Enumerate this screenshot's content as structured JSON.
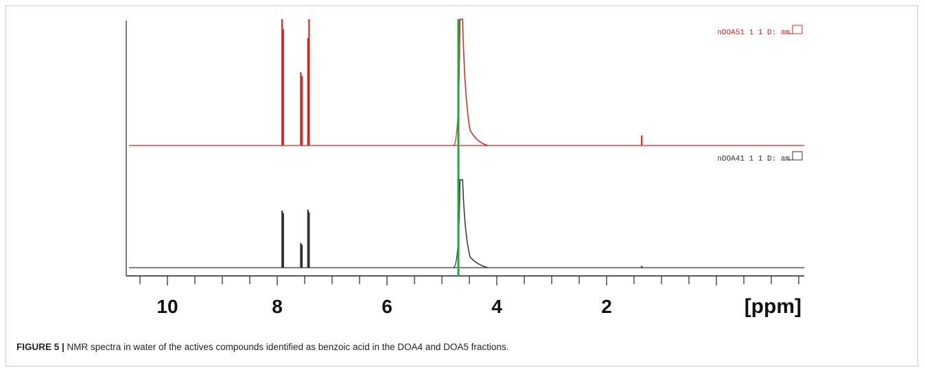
{
  "chart_data": {
    "type": "line",
    "x_axis": {
      "reversed": true,
      "range": [
        10.75,
        -1.6
      ],
      "major_ticks": [
        10,
        8,
        6,
        4,
        2
      ],
      "minor_tick_step": 0.5,
      "unit_label": "[ppm]"
    },
    "water_line_ppm": 4.7,
    "series": [
      {
        "name": "nDOA51 1 1 D: am",
        "color": "#e02020",
        "peaks": [
          {
            "ppm": 7.91,
            "height": 1.0
          },
          {
            "ppm": 7.89,
            "height": 0.92
          },
          {
            "ppm": 7.57,
            "height": 0.58
          },
          {
            "ppm": 7.55,
            "height": 0.55
          },
          {
            "ppm": 7.44,
            "height": 0.85
          },
          {
            "ppm": 7.42,
            "height": 1.0
          },
          {
            "ppm": 4.66,
            "height": 1.0
          },
          {
            "ppm": 1.36,
            "height": 0.08
          }
        ]
      },
      {
        "name": "nDOA41 1 1 D: am",
        "color": "#303030",
        "peaks": [
          {
            "ppm": 7.91,
            "height": 0.65
          },
          {
            "ppm": 7.89,
            "height": 0.62
          },
          {
            "ppm": 7.57,
            "height": 0.28
          },
          {
            "ppm": 7.55,
            "height": 0.26
          },
          {
            "ppm": 7.44,
            "height": 0.66
          },
          {
            "ppm": 7.42,
            "height": 0.63
          },
          {
            "ppm": 4.66,
            "height": 1.0
          },
          {
            "ppm": 1.36,
            "height": 0.02
          }
        ]
      }
    ]
  },
  "caption": {
    "label": "FIGURE 5 |",
    "text": " NMR spectra in water of the actives compounds identified as benzoic acid in the DOA4 and DOA5 fractions."
  }
}
